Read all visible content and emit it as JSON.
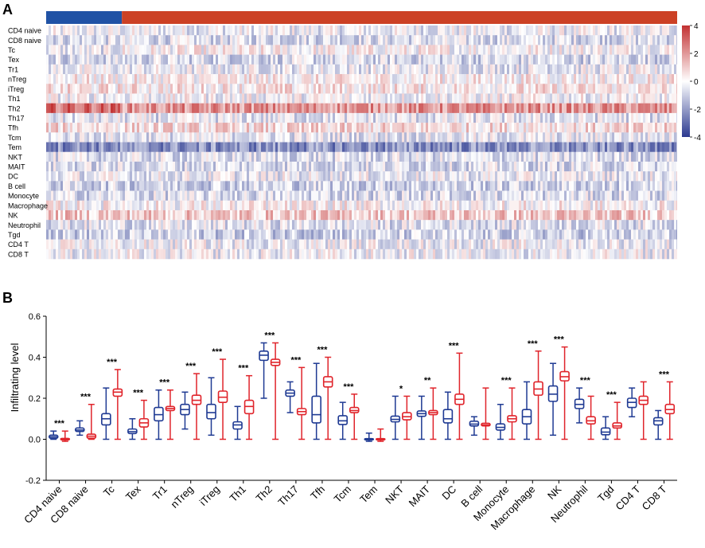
{
  "panels": {
    "a_label": "A",
    "b_label": "B"
  },
  "colors": {
    "blue": "#1f3a93",
    "red": "#e0242b",
    "annot_blue": "#2052a5",
    "annot_red": "#cc4125",
    "heat_high": "#c23132",
    "heat_mid": "#ffffff",
    "heat_low": "#2b3990"
  },
  "chart_data": [
    {
      "type": "heatmap",
      "panel": "A",
      "rows": [
        "CD4 naive",
        "CD8 naive",
        "Tc",
        "Tex",
        "Tr1",
        "nTreg",
        "iTreg",
        "Th1",
        "Th2",
        "Th17",
        "Tfh",
        "Tcm",
        "Tem",
        "NKT",
        "MAIT",
        "DC",
        "B cell",
        "Monocyte",
        "Macrophage",
        "NK",
        "Neutrophil",
        "Tgd",
        "CD4 T",
        "CD8 T"
      ],
      "row_mean_z": [
        -0.3,
        -0.6,
        0.1,
        -0.7,
        -0.3,
        0.2,
        0.4,
        -0.1,
        2.0,
        -0.5,
        0.6,
        -0.4,
        -2.2,
        -0.6,
        -0.6,
        -0.3,
        -0.8,
        -0.6,
        0.1,
        1.0,
        -0.5,
        -0.9,
        -0.2,
        -0.2
      ],
      "group_fraction": {
        "group_1": 0.12,
        "group_2": 0.88
      },
      "colorbar": {
        "ticks": [
          "4",
          "2",
          "0",
          "-2",
          "-4"
        ],
        "range": [
          -4,
          4
        ]
      }
    },
    {
      "type": "boxplot",
      "panel": "B",
      "ylabel": "Infiltrating level",
      "yticks": [
        "-0.2",
        "0.0",
        "0.2",
        "0.4",
        "0.6"
      ],
      "ylim": [
        -0.2,
        0.6
      ],
      "categories": [
        "CD4 naive",
        "CD8 naive",
        "Tc",
        "Tex",
        "Tr1",
        "nTreg",
        "iTreg",
        "Th1",
        "Th2",
        "Th17",
        "Tfh",
        "Tcm",
        "Tem",
        "NKT",
        "MAIT",
        "DC",
        "B cell",
        "Monocyte",
        "Macrophage",
        "NK",
        "Neutrophil",
        "Tgd",
        "CD4 T",
        "CD8 T"
      ],
      "significance": [
        "***",
        "***",
        "***",
        "***",
        "***",
        "***",
        "***",
        "***",
        "***",
        "***",
        "***",
        "***",
        "",
        "*",
        "**",
        "***",
        "",
        "***",
        "***",
        "***",
        "***",
        "***",
        "",
        "***"
      ],
      "series": [
        {
          "name": "group_1",
          "color": "blue",
          "boxes": [
            [
              0.0,
              0.005,
              0.012,
              0.02,
              0.04
            ],
            [
              0.02,
              0.038,
              0.045,
              0.055,
              0.09
            ],
            [
              0.0,
              0.07,
              0.1,
              0.125,
              0.25
            ],
            [
              0.0,
              0.028,
              0.037,
              0.05,
              0.1
            ],
            [
              0.0,
              0.09,
              0.12,
              0.155,
              0.24
            ],
            [
              0.05,
              0.12,
              0.145,
              0.17,
              0.23
            ],
            [
              0.02,
              0.1,
              0.13,
              0.17,
              0.3
            ],
            [
              0.0,
              0.05,
              0.07,
              0.085,
              0.16
            ],
            [
              0.2,
              0.385,
              0.41,
              0.43,
              0.47
            ],
            [
              0.13,
              0.21,
              0.225,
              0.24,
              0.28
            ],
            [
              0.0,
              0.08,
              0.12,
              0.21,
              0.37
            ],
            [
              0.0,
              0.072,
              0.09,
              0.115,
              0.18
            ],
            [
              -0.01,
              -0.003,
              0.0,
              0.003,
              0.03
            ],
            [
              0.0,
              0.085,
              0.097,
              0.113,
              0.21
            ],
            [
              0.0,
              0.112,
              0.125,
              0.138,
              0.21
            ],
            [
              0.0,
              0.08,
              0.1,
              0.145,
              0.23
            ],
            [
              0.02,
              0.065,
              0.074,
              0.088,
              0.11
            ],
            [
              0.0,
              0.045,
              0.058,
              0.075,
              0.17
            ],
            [
              0.0,
              0.075,
              0.11,
              0.145,
              0.28
            ],
            [
              0.02,
              0.185,
              0.22,
              0.26,
              0.37
            ],
            [
              0.08,
              0.15,
              0.17,
              0.195,
              0.25
            ],
            [
              0.0,
              0.022,
              0.035,
              0.055,
              0.11
            ],
            [
              0.11,
              0.155,
              0.18,
              0.2,
              0.25
            ],
            [
              0.0,
              0.07,
              0.09,
              0.105,
              0.14
            ]
          ]
        },
        {
          "name": "group_2",
          "color": "red",
          "boxes": [
            [
              -0.01,
              -0.003,
              0.0,
              0.004,
              0.04
            ],
            [
              0.0,
              0.005,
              0.015,
              0.025,
              0.17
            ],
            [
              0.0,
              0.21,
              0.23,
              0.245,
              0.34
            ],
            [
              0.0,
              0.06,
              0.08,
              0.1,
              0.19
            ],
            [
              0.0,
              0.14,
              0.15,
              0.16,
              0.24
            ],
            [
              0.0,
              0.17,
              0.19,
              0.215,
              0.32
            ],
            [
              0.0,
              0.18,
              0.205,
              0.235,
              0.39
            ],
            [
              0.0,
              0.125,
              0.16,
              0.19,
              0.31
            ],
            [
              0.0,
              0.36,
              0.375,
              0.39,
              0.47
            ],
            [
              0.0,
              0.12,
              0.135,
              0.15,
              0.35
            ],
            [
              0.0,
              0.255,
              0.28,
              0.305,
              0.4
            ],
            [
              0.0,
              0.13,
              0.14,
              0.155,
              0.22
            ],
            [
              -0.01,
              -0.003,
              0.0,
              0.003,
              0.05
            ],
            [
              0.0,
              0.095,
              0.11,
              0.13,
              0.21
            ],
            [
              0.0,
              0.12,
              0.13,
              0.14,
              0.25
            ],
            [
              0.0,
              0.17,
              0.195,
              0.22,
              0.42
            ],
            [
              0.0,
              0.065,
              0.07,
              0.078,
              0.25
            ],
            [
              0.0,
              0.085,
              0.1,
              0.115,
              0.25
            ],
            [
              0.0,
              0.215,
              0.245,
              0.28,
              0.43
            ],
            [
              0.0,
              0.285,
              0.305,
              0.33,
              0.45
            ],
            [
              0.0,
              0.075,
              0.09,
              0.11,
              0.21
            ],
            [
              0.0,
              0.055,
              0.065,
              0.08,
              0.18
            ],
            [
              0.0,
              0.17,
              0.19,
              0.21,
              0.28
            ],
            [
              0.0,
              0.125,
              0.145,
              0.17,
              0.28
            ]
          ]
        }
      ]
    }
  ]
}
